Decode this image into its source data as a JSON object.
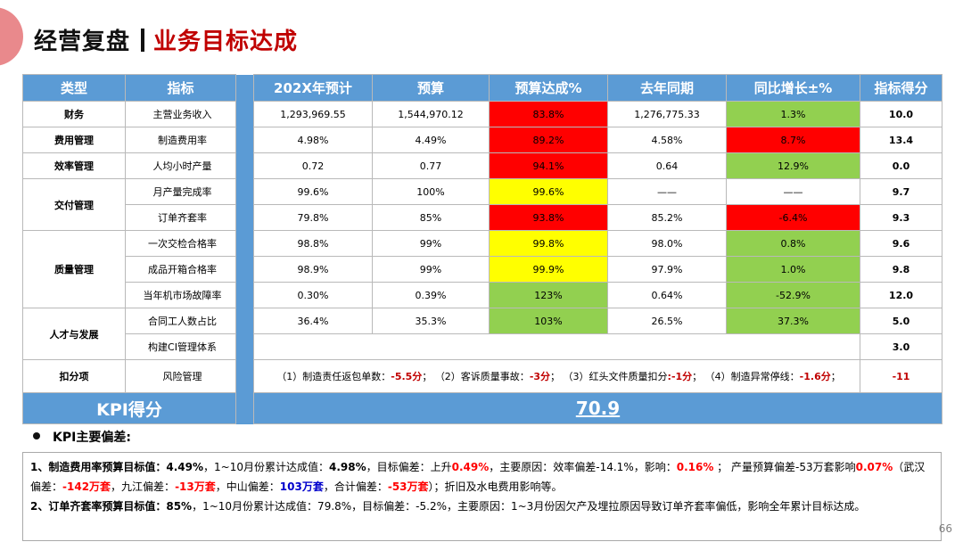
{
  "header": {
    "title_left": "经营复盘",
    "title_right": "业务目标达成"
  },
  "table": {
    "headers": {
      "type": "类型",
      "indicator": "指标",
      "forecast": "202X年预计",
      "budget": "预算",
      "rate": "预算达成%",
      "last_year": "去年同期",
      "yoy": "同比增长±%",
      "score": "指标得分"
    },
    "rows": [
      {
        "category": "财务",
        "indicator": "主营业务收入",
        "forecast": "1,293,969.55",
        "budget": "1,544,970.12",
        "rate": "83.8%",
        "rate_color": "#ff0000",
        "last_year": "1,276,775.33",
        "yoy": "1.3%",
        "yoy_color": "#92d050",
        "score": "10.0"
      },
      {
        "category": "费用管理",
        "indicator": "制造费用率",
        "forecast": "4.98%",
        "budget": "4.49%",
        "rate": "89.2%",
        "rate_color": "#ff0000",
        "last_year": "4.58%",
        "yoy": "8.7%",
        "yoy_color": "#ff0000",
        "score": "13.4"
      },
      {
        "category": "效率管理",
        "indicator": "人均小时产量",
        "forecast": "0.72",
        "budget": "0.77",
        "rate": "94.1%",
        "rate_color": "#ff0000",
        "last_year": "0.64",
        "yoy": "12.9%",
        "yoy_color": "#92d050",
        "score": "0.0"
      },
      {
        "category": "交付管理",
        "indicator": "月产量完成率",
        "forecast": "99.6%",
        "budget": "100%",
        "rate": "99.6%",
        "rate_color": "#ffff00",
        "last_year": "——",
        "yoy": "——",
        "yoy_color": "#ffffff",
        "score": "9.7"
      },
      {
        "category": "",
        "indicator": "订单齐套率",
        "forecast": "79.8%",
        "budget": "85%",
        "rate": "93.8%",
        "rate_color": "#ff0000",
        "last_year": "85.2%",
        "yoy": "-6.4%",
        "yoy_color": "#ff0000",
        "score": "9.3"
      },
      {
        "category": "质量管理",
        "indicator": "一次交检合格率",
        "forecast": "98.8%",
        "budget": "99%",
        "rate": "99.8%",
        "rate_color": "#ffff00",
        "last_year": "98.0%",
        "yoy": "0.8%",
        "yoy_color": "#92d050",
        "score": "9.6"
      },
      {
        "category": "",
        "indicator": "成品开箱合格率",
        "forecast": "98.9%",
        "budget": "99%",
        "rate": "99.9%",
        "rate_color": "#ffff00",
        "last_year": "97.9%",
        "yoy": "1.0%",
        "yoy_color": "#92d050",
        "score": "9.8"
      },
      {
        "category": "",
        "indicator": "当年机市场故障率",
        "forecast": "0.30%",
        "budget": "0.39%",
        "rate": "123%",
        "rate_color": "#92d050",
        "last_year": "0.64%",
        "yoy": "-52.9%",
        "yoy_color": "#92d050",
        "score": "12.0"
      },
      {
        "category": "人才与发展",
        "indicator": "合同工人数占比",
        "forecast": "36.4%",
        "budget": "35.3%",
        "rate": "103%",
        "rate_color": "#92d050",
        "last_year": "26.5%",
        "yoy": "37.3%",
        "yoy_color": "#92d050",
        "score": "5.0"
      },
      {
        "category": "",
        "indicator": "构建CI管理体系",
        "score": "3.0"
      }
    ],
    "deduct": {
      "category": "扣分项",
      "indicator": "风险管理",
      "i1": "（1）制造责任返包单数：",
      "v1": "-5.5分",
      "s1": "；",
      "i2": "（2）客诉质量事故：",
      "v2": "-3分",
      "s2": "；",
      "i3": "（3）红头文件质量扣分",
      "v3": ":-1分",
      "s3": "；",
      "i4": "（4）制造异常停线：",
      "v4": "-1.6分",
      "s4": "；",
      "score": "-11"
    },
    "kpi": {
      "label": "KPI得分",
      "value": "70.9"
    }
  },
  "deviation": {
    "heading": "KPI主要偏差:",
    "p1": {
      "a": "1、制造费用率预算目标值：",
      "b": "4.49%",
      "c": "，1~10月份累计达成值：",
      "d": "4.98%",
      "e": "，目标偏差：上升",
      "f": "0.49%",
      "g": "，主要原因：效率偏差-14.1%，影响：",
      "h": "0.16%",
      "i": " ；  产量预算偏差-53万套影响",
      "j": "0.07%",
      "k": "（武汉偏差：",
      "l": "-142万套",
      "m": "，九江偏差：",
      "n": "-13万套",
      "o": "，中山偏差：",
      "p": "103万套",
      "q": "，合计偏差：",
      "r": "-53万套",
      "s": "）；折旧及水电费用影响等。"
    },
    "p2": {
      "a": "2、订单齐套率预算目标值：",
      "b": "85%",
      "c": "，1~10月份累计达成值：79.8%，目标偏差：-5.2%，主要原因：1~3月份因欠产及埋拉原因导致订单齐套率偏低，影响全年累计目标达成。"
    }
  },
  "page_number": "66"
}
